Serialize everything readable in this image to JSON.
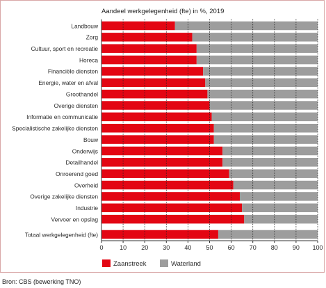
{
  "chart_data": {
    "type": "bar",
    "orientation": "horizontal",
    "stacked": true,
    "title": "Aandeel werkgelegenheid (fte) in %, 2019",
    "categories": [
      "Landbouw",
      "Zorg",
      "Cultuur, sport en recreatie",
      "Horeca",
      "Financiële diensten",
      "Energie, water en afval",
      "Groothandel",
      "Overige diensten",
      "Informatie en communicatie",
      "Specialistische zakelijke diensten",
      "Bouw",
      "Onderwijs",
      "Detailhandel",
      "Onroerend goed",
      "Overheid",
      "Overige zakelijke diensten",
      "Industrie",
      "Vervoer en opslag",
      "Totaal werkgelegenheid (fte)"
    ],
    "series": [
      {
        "name": "Zaanstreek",
        "color": "#e30613",
        "values": [
          34,
          42,
          44,
          44,
          47,
          48,
          49,
          50,
          51,
          52,
          52,
          56,
          56,
          59,
          61,
          64,
          65,
          66,
          54
        ]
      },
      {
        "name": "Waterland",
        "color": "#9d9d9d",
        "values": [
          66,
          58,
          56,
          56,
          53,
          52,
          51,
          50,
          49,
          48,
          48,
          44,
          44,
          41,
          39,
          36,
          35,
          34,
          46
        ]
      }
    ],
    "xlim": [
      0,
      100
    ],
    "xticks": [
      0,
      10,
      20,
      30,
      40,
      50,
      60,
      70,
      80,
      90,
      100
    ],
    "grid": "vertical dotted",
    "legend_placement": "bottom-left"
  },
  "source": "Bron: CBS (bewerking TNO)"
}
